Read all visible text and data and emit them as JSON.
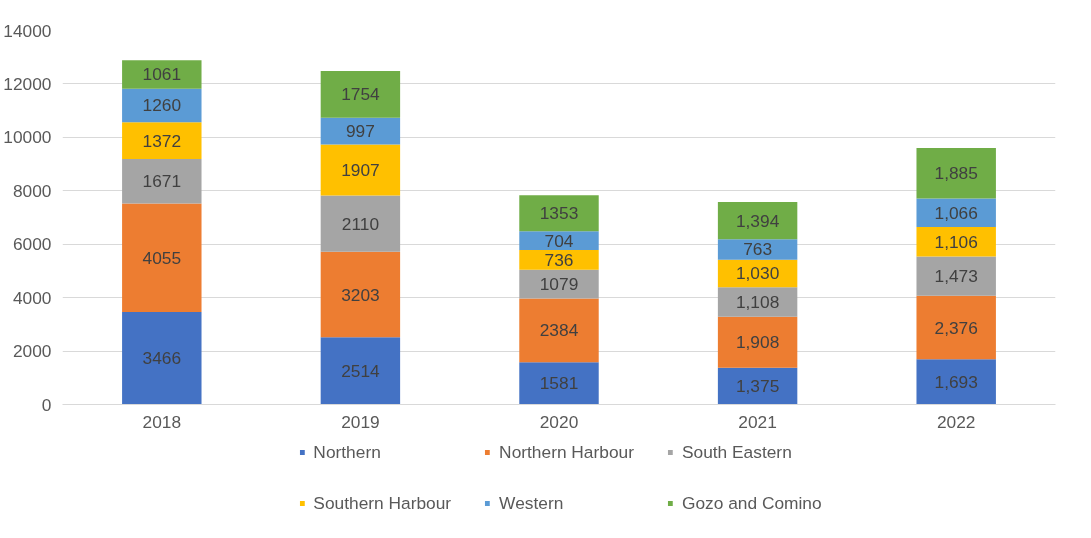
{
  "chart_data": {
    "type": "bar",
    "stacked": true,
    "categories": [
      "2018",
      "2019",
      "2020",
      "2021",
      "2022"
    ],
    "ylim": [
      0,
      14000
    ],
    "yticks": [
      0,
      2000,
      4000,
      6000,
      8000,
      10000,
      12000,
      14000
    ],
    "grid": "y",
    "legend": "bottom",
    "series": [
      {
        "name": "Northern",
        "color": "#4472c4",
        "values": [
          3466,
          2514,
          1581,
          1375,
          1693
        ],
        "value_labels": [
          "3466",
          "2514",
          "1581",
          "1,375",
          "1,693"
        ]
      },
      {
        "name": "Northern Harbour",
        "color": "#ed7d31",
        "values": [
          4055,
          3203,
          2384,
          1908,
          2376
        ],
        "value_labels": [
          "4055",
          "3203",
          "2384",
          "1,908",
          "2,376"
        ]
      },
      {
        "name": "South Eastern",
        "color": "#a5a5a5",
        "values": [
          1671,
          2110,
          1079,
          1108,
          1473
        ],
        "value_labels": [
          "1671",
          "2110",
          "1079",
          "1,108",
          "1,473"
        ]
      },
      {
        "name": "Southern Harbour",
        "color": "#ffc000",
        "values": [
          1372,
          1907,
          736,
          1030,
          1106
        ],
        "value_labels": [
          "1372",
          "1907",
          "736",
          "1,030",
          "1,106"
        ]
      },
      {
        "name": "Western",
        "color": "#5b9bd5",
        "values": [
          1260,
          997,
          704,
          763,
          1066
        ],
        "value_labels": [
          "1260",
          "997",
          "704",
          "763",
          "1,066"
        ]
      },
      {
        "name": "Gozo and Comino",
        "color": "#70ad47",
        "values": [
          1061,
          1754,
          1353,
          1394,
          1885
        ],
        "value_labels": [
          "1061",
          "1754",
          "1353",
          "1,394",
          "1,885"
        ]
      }
    ]
  }
}
